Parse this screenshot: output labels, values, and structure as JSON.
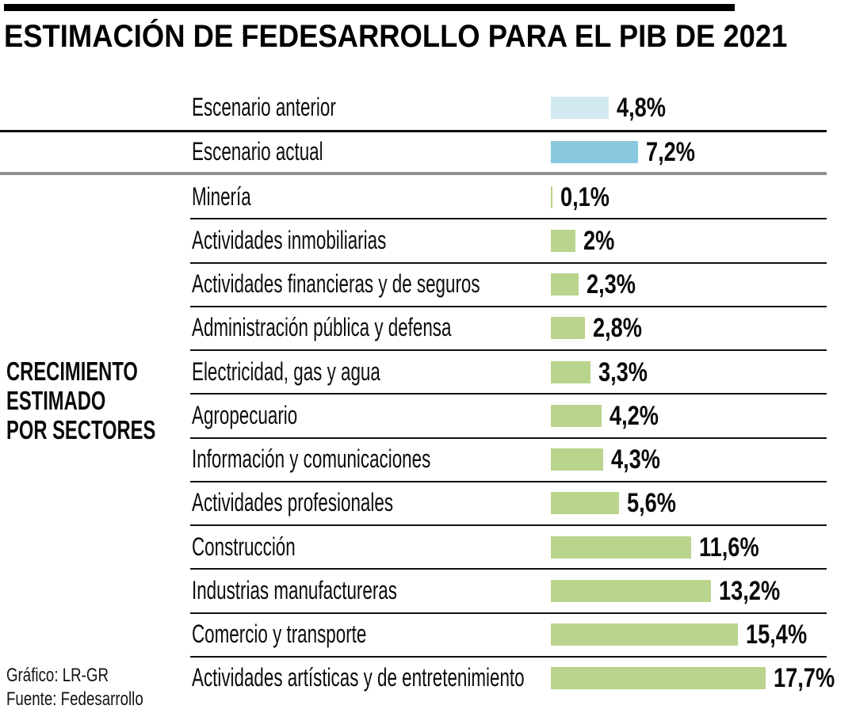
{
  "title": "ESTIMACIÓN DE FEDESARROLLO PARA EL PIB DE 2021",
  "side_label": {
    "line1": "CRECIMIENTO",
    "line2": "ESTIMADO",
    "line3": "POR SECTORES"
  },
  "footer": {
    "credit": "Gráfico: LR-GR",
    "source": "Fuente: Fedesarrollo"
  },
  "colors": {
    "scenario_previous_bar": "#d3e9f2",
    "scenario_current_bar": "#8ac8dd",
    "sector_bar": "#b9d48c",
    "separator_black": "#101010",
    "separator_gray": "#8f8f8f",
    "title_rule": "#000000",
    "text": "#0d0d0d"
  },
  "chart_data": {
    "type": "bar",
    "orientation": "horizontal",
    "title": "ESTIMACIÓN DE FEDESARROLLO PARA EL PIB DE 2021",
    "unit": "%",
    "xlim": [
      0,
      20
    ],
    "grid": false,
    "legend_position": "none",
    "scenarios": [
      {
        "label": "Escenario anterior",
        "value": 4.8,
        "display": "4,8%"
      },
      {
        "label": "Escenario actual",
        "value": 7.2,
        "display": "7,2%"
      }
    ],
    "group_label": "CRECIMIENTO ESTIMADO POR SECTORES",
    "categories": [
      "Minería",
      "Actividades inmobiliarias",
      "Actividades financieras y de seguros",
      "Administración pública y defensa",
      "Electricidad, gas y agua",
      "Agropecuario",
      "Información y comunicaciones",
      "Actividades profesionales",
      "Construcción",
      "Industrias manufactureras",
      "Comercio y transporte",
      "Actividades artísticas y de entretenimiento"
    ],
    "values": [
      0.1,
      2,
      2.3,
      2.8,
      3.3,
      4.2,
      4.3,
      5.6,
      11.6,
      13.2,
      15.4,
      17.7
    ],
    "value_labels": [
      "0,1%",
      "2%",
      "2,3%",
      "2,8%",
      "3,3%",
      "4,2%",
      "4,3%",
      "5,6%",
      "11,6%",
      "13,2%",
      "15,4%",
      "17,7%"
    ]
  }
}
